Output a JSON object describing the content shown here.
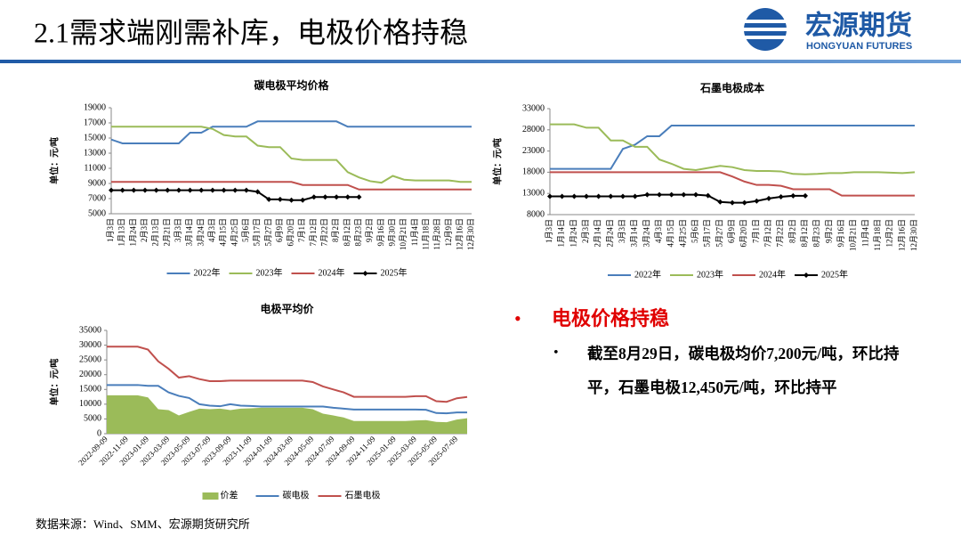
{
  "header": {
    "title": "2.1需求端刚需补库，电极价格持稳"
  },
  "logo": {
    "name": "宏源期货",
    "subtitle": "HONGYUAN FUTURES"
  },
  "chart_data": [
    {
      "type": "line",
      "title": "碳电极平均价格",
      "y_label": "单位：元/吨",
      "categories": [
        "1月3日",
        "1月13日",
        "1月24日",
        "2月3日",
        "2月13日",
        "2月21日",
        "3月3日",
        "3月14日",
        "3月24日",
        "4月3日",
        "4月15日",
        "4月25日",
        "5月6日",
        "5月17日",
        "5月27日",
        "6月9日",
        "6月20日",
        "7月1日",
        "7月12日",
        "7月22日",
        "8月2日",
        "8月12日",
        "8月23日",
        "9月2日",
        "9月16日",
        "9月30日",
        "10月21日",
        "11月4日",
        "11月18日",
        "11月28日",
        "12月9日",
        "12月16日",
        "12月30日"
      ],
      "ylim": [
        5000,
        19000
      ],
      "yticks": [
        5000,
        7000,
        9000,
        11000,
        13000,
        15000,
        17000,
        19000
      ],
      "series": [
        {
          "name": "2022年",
          "color": "#4a7ebb",
          "values": [
            14800,
            14300,
            14300,
            14300,
            14300,
            14300,
            14300,
            15700,
            15700,
            16500,
            16500,
            16500,
            16500,
            17200,
            17200,
            17200,
            17200,
            17200,
            17200,
            17200,
            17200,
            16500,
            16500,
            16500,
            16500,
            16500,
            16500,
            16500,
            16500,
            16500,
            16500,
            16500,
            16500
          ]
        },
        {
          "name": "2023年",
          "color": "#9bbb59",
          "values": [
            16500,
            16500,
            16500,
            16500,
            16500,
            16500,
            16500,
            16500,
            16500,
            16200,
            15400,
            15200,
            15200,
            14000,
            13800,
            13800,
            12300,
            12100,
            12100,
            12100,
            12100,
            10500,
            9800,
            9300,
            9100,
            10000,
            9500,
            9400,
            9400,
            9400,
            9400,
            9200,
            9200
          ]
        },
        {
          "name": "2024年",
          "color": "#c0504d",
          "values": [
            9200,
            9200,
            9200,
            9200,
            9200,
            9200,
            9200,
            9200,
            9200,
            9200,
            9200,
            9200,
            9200,
            9200,
            9200,
            9200,
            9200,
            8800,
            8800,
            8800,
            8800,
            8800,
            8200,
            8200,
            8200,
            8200,
            8200,
            8200,
            8200,
            8200,
            8200,
            8200,
            8200
          ]
        },
        {
          "name": "2025年",
          "color": "#000000",
          "marker": "diamond",
          "values": [
            8100,
            8100,
            8100,
            8100,
            8100,
            8100,
            8100,
            8100,
            8100,
            8100,
            8100,
            8100,
            8100,
            7900,
            6900,
            6900,
            6800,
            6800,
            7200,
            7200,
            7200,
            7200,
            7200,
            null,
            null,
            null,
            null,
            null,
            null,
            null,
            null,
            null,
            null
          ]
        }
      ]
    },
    {
      "type": "line",
      "title": "石墨电极成本",
      "y_label": "单位：元/吨",
      "categories": [
        "1月3日",
        "1月14日",
        "1月24日",
        "2月3日",
        "2月14日",
        "2月24日",
        "3月3日",
        "3月14日",
        "3月24日",
        "4月3日",
        "4月15日",
        "4月25日",
        "5月6日",
        "5月17日",
        "5月27日",
        "6月9日",
        "6月20日",
        "7月1日",
        "7月12日",
        "7月22日",
        "8月2日",
        "8月12日",
        "8月23日",
        "9月2日",
        "9月16日",
        "10月21日",
        "11月4日",
        "11月18日",
        "12月2日",
        "12月16日",
        "12月30日"
      ],
      "ylim": [
        8000,
        33000
      ],
      "yticks": [
        8000,
        13000,
        18000,
        23000,
        28000,
        33000
      ],
      "series": [
        {
          "name": "2022年",
          "color": "#4a7ebb",
          "values": [
            18800,
            18800,
            18800,
            18800,
            18800,
            18800,
            23500,
            24500,
            26500,
            26500,
            29000,
            29000,
            29000,
            29000,
            29000,
            29000,
            29000,
            29000,
            29000,
            29000,
            29000,
            29000,
            29000,
            29000,
            29000,
            29000,
            29000,
            29000,
            29000,
            29000,
            29000
          ]
        },
        {
          "name": "2023年",
          "color": "#9bbb59",
          "values": [
            29300,
            29300,
            29300,
            28500,
            28500,
            25500,
            25500,
            24000,
            24000,
            21000,
            20000,
            18800,
            18500,
            19000,
            19500,
            19200,
            18500,
            18300,
            18300,
            18200,
            17600,
            17500,
            17600,
            17800,
            17800,
            18000,
            18000,
            18000,
            17900,
            17800,
            18000
          ]
        },
        {
          "name": "2024年",
          "color": "#c0504d",
          "values": [
            18000,
            18000,
            18000,
            18000,
            18000,
            18000,
            18000,
            18000,
            18000,
            18000,
            18000,
            18000,
            18000,
            18000,
            18000,
            17000,
            15800,
            15000,
            15000,
            14800,
            14000,
            14000,
            14000,
            14000,
            12500,
            12500,
            12500,
            12500,
            12500,
            12500,
            12500
          ]
        },
        {
          "name": "2025年",
          "color": "#000000",
          "marker": "diamond",
          "values": [
            12300,
            12300,
            12300,
            12300,
            12300,
            12300,
            12300,
            12300,
            12700,
            12700,
            12700,
            12700,
            12700,
            12500,
            11000,
            10800,
            10800,
            11200,
            11800,
            12200,
            12450,
            12450,
            null,
            null,
            null,
            null,
            null,
            null,
            null,
            null,
            null
          ]
        }
      ]
    },
    {
      "type": "line",
      "title": "电极平均价",
      "y_label": "单位：元/吨",
      "categories": [
        "2022-09-09",
        null,
        "2022-11-09",
        null,
        "2023-01-09",
        null,
        "2023-03-09",
        null,
        "2023-05-09",
        null,
        "2023-07-09",
        null,
        "2023-09-09",
        null,
        "2023-11-09",
        null,
        "2024-01-09",
        null,
        "2024-03-09",
        null,
        "2024-05-09",
        null,
        "2024-07-09",
        null,
        "2024-09-09",
        null,
        "2024-11-09",
        null,
        "2025-01-09",
        null,
        "2025-03-09",
        null,
        "2025-05-09",
        null,
        "2025-07-09",
        null
      ],
      "ylim": [
        0,
        35000
      ],
      "yticks": [
        0,
        5000,
        10000,
        15000,
        20000,
        25000,
        30000,
        35000
      ],
      "series": [
        {
          "name": "价差",
          "color": "#9bbb59",
          "type": "area",
          "values": [
            13000,
            13000,
            13000,
            13000,
            12300,
            8300,
            8000,
            6200,
            7400,
            8500,
            8300,
            8500,
            8000,
            8500,
            8600,
            8800,
            8800,
            8800,
            8800,
            8800,
            8300,
            6800,
            6200,
            5500,
            4300,
            4300,
            4300,
            4300,
            4300,
            4300,
            4500,
            4600,
            4000,
            3900,
            4800,
            5250
          ]
        },
        {
          "name": "碳电极",
          "color": "#4a7ebb",
          "values": [
            16500,
            16500,
            16500,
            16500,
            16200,
            16200,
            14000,
            12800,
            12100,
            10000,
            9500,
            9300,
            10000,
            9500,
            9400,
            9200,
            9200,
            9200,
            9200,
            9200,
            9200,
            9200,
            8800,
            8500,
            8200,
            8200,
            8200,
            8200,
            8200,
            8200,
            8200,
            8100,
            7000,
            6900,
            7200,
            7200
          ]
        },
        {
          "name": "石墨电极",
          "color": "#c0504d",
          "values": [
            29500,
            29500,
            29500,
            29500,
            28500,
            24500,
            22000,
            19000,
            19500,
            18500,
            17800,
            17800,
            18000,
            18000,
            18000,
            18000,
            18000,
            18000,
            18000,
            18000,
            17500,
            16000,
            15000,
            14000,
            12500,
            12500,
            12500,
            12500,
            12500,
            12500,
            12700,
            12700,
            11000,
            10800,
            12000,
            12450
          ]
        }
      ]
    }
  ],
  "notes": {
    "heading": "电极价格持稳",
    "text": "截至8月29日，碳电极均价7,200元/吨，环比持平，石墨电极12,450元/吨，环比持平"
  },
  "source": "数据来源：Wind、SMM、宏源期货研究所"
}
